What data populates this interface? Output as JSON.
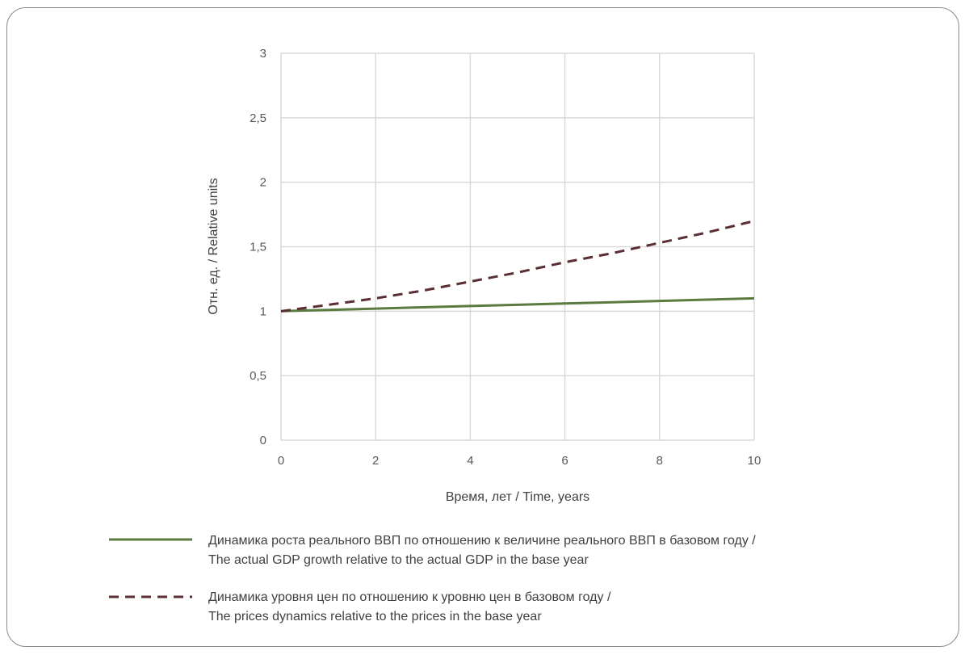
{
  "chart_data": {
    "type": "line",
    "title": "",
    "xlabel": "Время, лет / Time, years",
    "ylabel": "Отн. ед. / Relative units",
    "xlim": [
      0,
      10
    ],
    "ylim": [
      0,
      3
    ],
    "x_ticks": [
      "0",
      "2",
      "4",
      "6",
      "8",
      "10"
    ],
    "y_ticks": [
      "0",
      "0,5",
      "1",
      "1,5",
      "2",
      "2,5",
      "3"
    ],
    "grid": true,
    "legend_position": "bottom",
    "series": [
      {
        "name": "Динамика роста реального ВВП по отношению к величине реального ВВП в базовом году / The actual GDP growth relative to the actual GDP in the base year",
        "legend_lines": [
          "Динамика роста реального ВВП по отношению к величине реального ВВП в базовом году /",
          "The actual GDP growth relative to the actual GDP in the base year"
        ],
        "style": "solid",
        "color": "#5a7a3f",
        "x": [
          0,
          1,
          2,
          3,
          4,
          5,
          6,
          7,
          8,
          9,
          10
        ],
        "y": [
          1.0,
          1.01,
          1.02,
          1.03,
          1.04,
          1.05,
          1.06,
          1.07,
          1.08,
          1.09,
          1.1
        ]
      },
      {
        "name": "Динамика уровня цен по отношению к уровню цен в базовом году / The prices dynamics relative to the prices in the base year",
        "legend_lines": [
          "Динамика уровня цен по отношению к уровню цен в базовом году /",
          "The prices dynamics relative to the prices in the base year"
        ],
        "style": "dashed",
        "color": "#5a2f33",
        "x": [
          0,
          1,
          2,
          3,
          4,
          5,
          6,
          7,
          8,
          9,
          10
        ],
        "y": [
          1.0,
          1.05,
          1.1,
          1.16,
          1.23,
          1.3,
          1.38,
          1.45,
          1.53,
          1.61,
          1.7
        ]
      }
    ]
  }
}
